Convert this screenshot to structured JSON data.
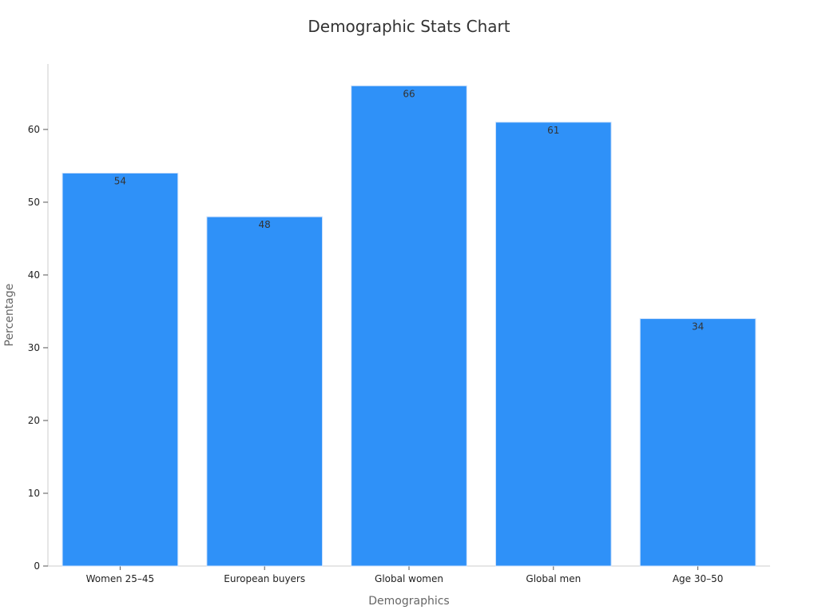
{
  "chart_data": {
    "type": "bar",
    "title": "Demographic Stats Chart",
    "xlabel": "Demographics",
    "ylabel": "Percentage",
    "categories": [
      "Women 25–45",
      "European buyers",
      "Global women",
      "Global men",
      "Age 30–50"
    ],
    "values": [
      54,
      48,
      66,
      61,
      34
    ],
    "ylim": [
      0,
      69
    ],
    "yticks": [
      0,
      10,
      20,
      30,
      40,
      50,
      60
    ],
    "grid": false,
    "legend": "none",
    "bar_color": "#2f91f8",
    "bar_edge_color": "#cfe2fb"
  }
}
